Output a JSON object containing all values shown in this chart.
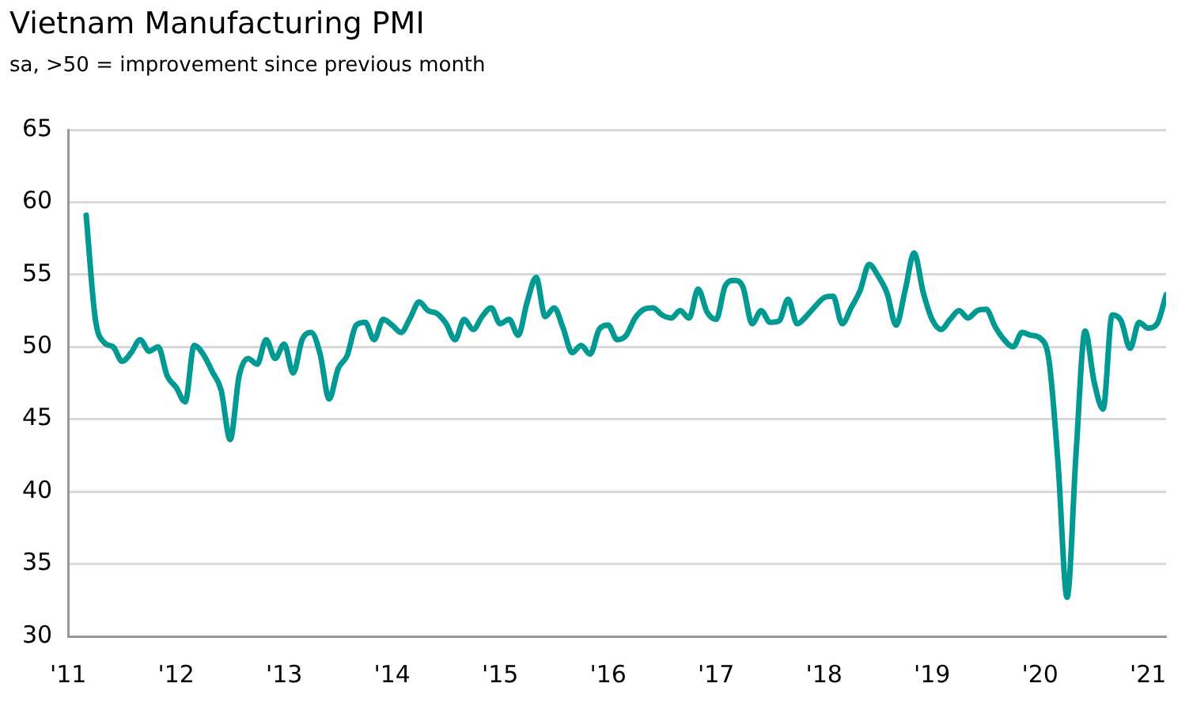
{
  "chart_data": {
    "type": "line",
    "title": "Vietnam Manufacturing PMI",
    "subtitle": "sa, >50 = improvement since previous month",
    "x": [
      "2011-03",
      "2011-04",
      "2011-05",
      "2011-06",
      "2011-07",
      "2011-08",
      "2011-09",
      "2011-10",
      "2011-11",
      "2011-12",
      "2012-01",
      "2012-02",
      "2012-03",
      "2012-04",
      "2012-05",
      "2012-06",
      "2012-07",
      "2012-08",
      "2012-09",
      "2012-10",
      "2012-11",
      "2012-12",
      "2013-01",
      "2013-02",
      "2013-03",
      "2013-04",
      "2013-05",
      "2013-06",
      "2013-07",
      "2013-08",
      "2013-09",
      "2013-10",
      "2013-11",
      "2013-12",
      "2014-01",
      "2014-02",
      "2014-03",
      "2014-04",
      "2014-05",
      "2014-06",
      "2014-07",
      "2014-08",
      "2014-09",
      "2014-10",
      "2014-11",
      "2014-12",
      "2015-01",
      "2015-02",
      "2015-03",
      "2015-04",
      "2015-05",
      "2015-06",
      "2015-07",
      "2015-08",
      "2015-09",
      "2015-10",
      "2015-11",
      "2015-12",
      "2016-01",
      "2016-02",
      "2016-03",
      "2016-04",
      "2016-05",
      "2016-06",
      "2016-07",
      "2016-08",
      "2016-09",
      "2016-10",
      "2016-11",
      "2016-12",
      "2017-01",
      "2017-02",
      "2017-03",
      "2017-04",
      "2017-05",
      "2017-06",
      "2017-07",
      "2017-08",
      "2017-09",
      "2017-10",
      "2017-11",
      "2017-12",
      "2018-01",
      "2018-02",
      "2018-03",
      "2018-04",
      "2018-05",
      "2018-06",
      "2018-07",
      "2018-08",
      "2018-09",
      "2018-10",
      "2018-11",
      "2018-12",
      "2019-01",
      "2019-02",
      "2019-03",
      "2019-04",
      "2019-05",
      "2019-06",
      "2019-07",
      "2019-08",
      "2019-09",
      "2019-10",
      "2019-11",
      "2019-12",
      "2020-01",
      "2020-02",
      "2020-03",
      "2020-04",
      "2020-05",
      "2020-06",
      "2020-07",
      "2020-08",
      "2020-09",
      "2020-10",
      "2020-11",
      "2020-12",
      "2021-01",
      "2021-02",
      "2021-03"
    ],
    "series": [
      {
        "color": "#009a93",
        "values": [
          59.1,
          52.0,
          50.3,
          50.0,
          49.0,
          49.6,
          50.5,
          49.7,
          50.0,
          48.0,
          47.2,
          46.2,
          50.1,
          49.5,
          48.3,
          47.0,
          43.6,
          48.0,
          49.2,
          48.8,
          50.5,
          49.2,
          50.2,
          48.2,
          50.5,
          51.0,
          49.5,
          46.4,
          48.5,
          49.4,
          51.5,
          51.7,
          50.5,
          51.9,
          51.5,
          51.0,
          52.0,
          53.1,
          52.5,
          52.3,
          51.6,
          50.5,
          51.9,
          51.2,
          52.1,
          52.7,
          51.6,
          51.9,
          50.8,
          53.1,
          54.8,
          52.1,
          52.7,
          51.3,
          49.6,
          50.1,
          49.5,
          51.2,
          51.5,
          50.5,
          50.8,
          52.0,
          52.6,
          52.7,
          52.2,
          52.0,
          52.5,
          52.0,
          54.0,
          52.4,
          51.9,
          54.2,
          54.6,
          54.1,
          51.6,
          52.5,
          51.7,
          51.8,
          53.3,
          51.6,
          52.1,
          52.8,
          53.4,
          53.5,
          51.6,
          52.7,
          53.9,
          55.7,
          54.9,
          53.7,
          51.5,
          53.9,
          56.5,
          53.8,
          51.9,
          51.2,
          51.9,
          52.5,
          52.0,
          52.5,
          52.6,
          51.4,
          50.5,
          50.0,
          51.0,
          50.8,
          50.6,
          49.0,
          41.9,
          32.7,
          42.7,
          51.1,
          47.6,
          45.7,
          52.2,
          51.8,
          49.9,
          51.7,
          51.3,
          51.6,
          53.6
        ]
      }
    ],
    "xlim": [
      "2011-01",
      "2021-03"
    ],
    "xticks": [
      {
        "value": "2011-01",
        "label": "'11"
      },
      {
        "value": "2012-01",
        "label": "'12"
      },
      {
        "value": "2013-01",
        "label": "'13"
      },
      {
        "value": "2014-01",
        "label": "'14"
      },
      {
        "value": "2015-01",
        "label": "'15"
      },
      {
        "value": "2016-01",
        "label": "'16"
      },
      {
        "value": "2017-01",
        "label": "'17"
      },
      {
        "value": "2018-01",
        "label": "'18"
      },
      {
        "value": "2019-01",
        "label": "'19"
      },
      {
        "value": "2020-01",
        "label": "'20"
      },
      {
        "value": "2021-01",
        "label": "'21"
      }
    ],
    "ylim": [
      30,
      65
    ],
    "yticks": [
      30,
      35,
      40,
      45,
      50,
      55,
      60,
      65
    ],
    "grid": "y",
    "legend": false,
    "marker": "none",
    "line_style": "solid"
  }
}
